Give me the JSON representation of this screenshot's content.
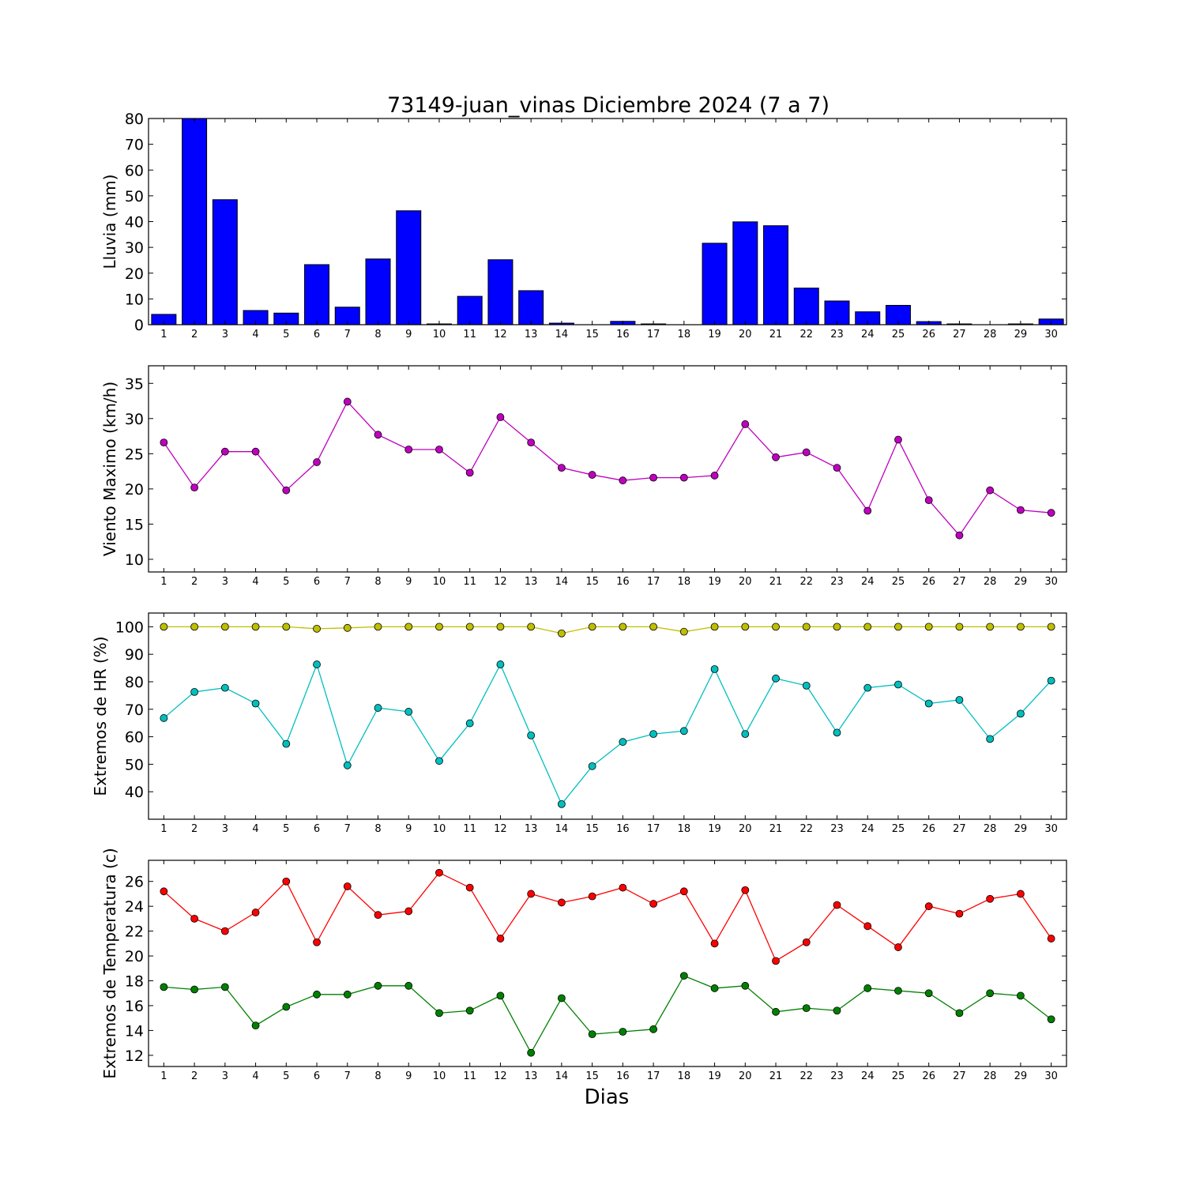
{
  "title": "73149-juan_vinas Diciembre 2024  (7 a 7)",
  "xlabel": "Dias",
  "days": [
    1,
    2,
    3,
    4,
    5,
    6,
    7,
    8,
    9,
    10,
    11,
    12,
    13,
    14,
    15,
    16,
    17,
    18,
    19,
    20,
    21,
    22,
    23,
    24,
    25,
    26,
    27,
    28,
    29,
    30
  ],
  "colors": {
    "rain": "#0000ff",
    "wind": "#bf00bf",
    "hr_max": "#bfbf00",
    "hr_min": "#00bfbf",
    "temp_max": "#ff0000",
    "temp_min": "#008000"
  },
  "chart_data": [
    {
      "type": "bar",
      "ylabel": "Lluvia (mm)",
      "ylim": [
        0,
        80
      ],
      "yticks": [
        0,
        10,
        20,
        30,
        40,
        50,
        60,
        70,
        80
      ],
      "categories": [
        1,
        2,
        3,
        4,
        5,
        6,
        7,
        8,
        9,
        10,
        11,
        12,
        13,
        14,
        15,
        16,
        17,
        18,
        19,
        20,
        21,
        22,
        23,
        24,
        25,
        26,
        27,
        28,
        29,
        30
      ],
      "values": [
        4.0,
        80.0,
        48.5,
        5.5,
        4.5,
        23.3,
        6.8,
        25.5,
        44.2,
        0.3,
        11.0,
        25.2,
        13.2,
        0.6,
        0.0,
        1.3,
        0.3,
        0.0,
        31.6,
        39.9,
        38.4,
        14.2,
        9.2,
        5.0,
        7.5,
        1.2,
        0.3,
        0.0,
        0.3,
        2.2
      ]
    },
    {
      "type": "line",
      "ylabel": "Viento Maximo (km/h)",
      "ylim": [
        8.2,
        37.5
      ],
      "yticks": [
        10,
        15,
        20,
        25,
        30,
        35
      ],
      "x": [
        1,
        2,
        3,
        4,
        5,
        6,
        7,
        8,
        9,
        10,
        11,
        12,
        13,
        14,
        15,
        16,
        17,
        18,
        19,
        20,
        21,
        22,
        23,
        24,
        25,
        26,
        27,
        28,
        29,
        30
      ],
      "series": [
        {
          "values": [
            26.6,
            20.2,
            25.3,
            25.3,
            19.8,
            23.8,
            32.4,
            27.7,
            25.6,
            25.6,
            22.3,
            30.2,
            26.6,
            23.0,
            22.0,
            21.2,
            21.6,
            21.6,
            21.9,
            29.2,
            24.5,
            25.2,
            23.0,
            16.9,
            27.0,
            18.4,
            13.4,
            19.8,
            17.0,
            16.6
          ]
        }
      ]
    },
    {
      "type": "line",
      "ylabel": "Extremos de HR (%)",
      "ylim": [
        30,
        105
      ],
      "yticks": [
        40,
        50,
        60,
        70,
        80,
        90,
        100
      ],
      "x": [
        1,
        2,
        3,
        4,
        5,
        6,
        7,
        8,
        9,
        10,
        11,
        12,
        13,
        14,
        15,
        16,
        17,
        18,
        19,
        20,
        21,
        22,
        23,
        24,
        25,
        26,
        27,
        28,
        29,
        30
      ],
      "series": [
        {
          "values": [
            100,
            100,
            100,
            100,
            100,
            99.3,
            99.6,
            100,
            100,
            100,
            100,
            100,
            100,
            97.6,
            100,
            100,
            100,
            98.2,
            100,
            100,
            100,
            100,
            100,
            100,
            100,
            100,
            100,
            100,
            100,
            100
          ]
        },
        {
          "values": [
            66.8,
            76.3,
            77.8,
            72.1,
            57.4,
            86.3,
            49.6,
            70.5,
            69.1,
            51.2,
            64.9,
            86.3,
            60.5,
            35.5,
            49.3,
            58.1,
            61.0,
            62.1,
            84.6,
            61.0,
            81.2,
            78.6,
            61.5,
            77.8,
            79.0,
            72.1,
            73.4,
            59.2,
            68.4,
            80.4
          ]
        }
      ]
    },
    {
      "type": "line",
      "ylabel": "Extremos de Temperatura (c)",
      "ylim": [
        11.1,
        27.7
      ],
      "yticks": [
        12,
        14,
        16,
        18,
        20,
        22,
        24,
        26
      ],
      "x": [
        1,
        2,
        3,
        4,
        5,
        6,
        7,
        8,
        9,
        10,
        11,
        12,
        13,
        14,
        15,
        16,
        17,
        18,
        19,
        20,
        21,
        22,
        23,
        24,
        25,
        26,
        27,
        28,
        29,
        30
      ],
      "series": [
        {
          "values": [
            25.2,
            23.0,
            22.0,
            23.5,
            26.0,
            21.1,
            25.6,
            23.3,
            23.6,
            26.7,
            25.5,
            21.4,
            25.0,
            24.3,
            24.8,
            25.5,
            24.2,
            25.2,
            21.0,
            25.3,
            19.6,
            21.1,
            24.1,
            22.4,
            20.7,
            24.0,
            23.4,
            24.6,
            25.0,
            21.4
          ]
        },
        {
          "values": [
            17.5,
            17.3,
            17.5,
            14.4,
            15.9,
            16.9,
            16.9,
            17.6,
            17.6,
            15.4,
            15.6,
            16.8,
            12.2,
            16.6,
            13.7,
            13.9,
            14.1,
            18.4,
            17.4,
            17.6,
            15.5,
            15.8,
            15.6,
            17.4,
            17.2,
            17.0,
            15.4,
            17.0,
            16.8,
            14.9
          ]
        }
      ]
    }
  ]
}
